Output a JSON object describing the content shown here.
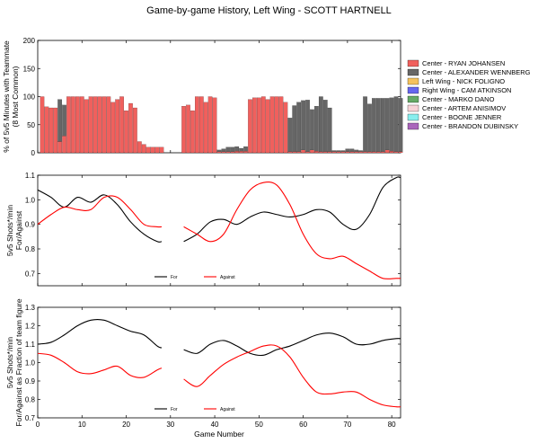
{
  "title": "Game-by-game History, Left Wing - SCOTT HARTNELL",
  "chart_data": [
    {
      "type": "bar",
      "stacked": true,
      "ylabel": "% of 5v5 Minutes with Teammate\n(8 Most Common)",
      "xlim": [
        0,
        82
      ],
      "ylim": [
        0,
        200
      ],
      "yticks": [
        0,
        50,
        100,
        150,
        200
      ],
      "xticks_shown": false,
      "legend_position": "right",
      "games": [
        1,
        2,
        3,
        4,
        5,
        6,
        7,
        8,
        9,
        10,
        11,
        12,
        13,
        14,
        15,
        16,
        17,
        18,
        19,
        20,
        21,
        22,
        23,
        24,
        25,
        26,
        27,
        28,
        33,
        34,
        35,
        36,
        37,
        38,
        39,
        40,
        41,
        42,
        43,
        44,
        45,
        46,
        47,
        48,
        49,
        50,
        51,
        52,
        53,
        54,
        55,
        56,
        57,
        58,
        59,
        60,
        61,
        62,
        63,
        64,
        65,
        66,
        67,
        68,
        69,
        70,
        71,
        72,
        73,
        74,
        75,
        76,
        77,
        78,
        79,
        80,
        81,
        82
      ],
      "series": [
        {
          "name": "Center - RYAN JOHANSEN",
          "color": "#f0605d",
          "values": [
            100,
            82,
            80,
            80,
            20,
            30,
            100,
            100,
            100,
            100,
            95,
            100,
            100,
            100,
            100,
            100,
            90,
            95,
            100,
            75,
            88,
            80,
            20,
            15,
            10,
            10,
            10,
            10,
            83,
            85,
            75,
            100,
            100,
            90,
            100,
            98,
            2,
            2,
            2,
            2,
            3,
            3,
            3,
            95,
            98,
            98,
            100,
            95,
            100,
            100,
            100,
            90,
            2,
            2,
            2,
            5,
            2,
            5,
            3,
            2,
            2,
            2,
            2,
            2,
            2,
            2,
            2,
            2,
            2,
            2,
            2,
            2,
            2,
            2,
            5,
            3,
            2,
            2
          ]
        },
        {
          "name": "Center - ALEXANDER WENNBERG",
          "color": "#666666",
          "values": [
            0,
            0,
            0,
            0,
            75,
            55,
            0,
            0,
            0,
            0,
            0,
            0,
            0,
            0,
            0,
            0,
            0,
            0,
            0,
            0,
            0,
            0,
            0,
            0,
            0,
            0,
            0,
            0,
            0,
            0,
            0,
            0,
            0,
            0,
            0,
            0,
            3,
            5,
            8,
            8,
            8,
            5,
            8,
            0,
            0,
            0,
            0,
            0,
            0,
            0,
            0,
            0,
            60,
            82,
            88,
            88,
            92,
            72,
            80,
            98,
            92,
            78,
            2,
            2,
            2,
            5,
            5,
            3,
            2,
            98,
            85,
            95,
            95,
            95,
            92,
            95,
            98,
            95
          ]
        },
        {
          "name": "Left Wing - NICK FOLIGNO",
          "color": "#f5c25c",
          "values": [
            0,
            0,
            0,
            0,
            0,
            0,
            0,
            0,
            0,
            0,
            0,
            0,
            0,
            0,
            0,
            0,
            0,
            0,
            0,
            0,
            0,
            0,
            0,
            0,
            0,
            0,
            0,
            0,
            0,
            0,
            0,
            0,
            0,
            0,
            0,
            0,
            0,
            0,
            0,
            0,
            0,
            0,
            0,
            0,
            0,
            0,
            0,
            0,
            0,
            0,
            0,
            0,
            0,
            0,
            0,
            0,
            0,
            0,
            0,
            0,
            0,
            0,
            0,
            0,
            0,
            0,
            0,
            0,
            0,
            0,
            0,
            0,
            0,
            0,
            0,
            0,
            0,
            0
          ]
        },
        {
          "name": "Right Wing - CAM ATKINSON",
          "color": "#6666ee",
          "values": [
            0,
            0,
            0,
            0,
            0,
            0,
            0,
            0,
            0,
            0,
            0,
            0,
            0,
            0,
            0,
            0,
            0,
            0,
            0,
            0,
            0,
            0,
            0,
            0,
            0,
            0,
            0,
            0,
            0,
            0,
            0,
            0,
            0,
            0,
            0,
            0,
            0,
            0,
            0,
            0,
            0,
            0,
            0,
            0,
            0,
            0,
            0,
            0,
            0,
            0,
            0,
            0,
            0,
            0,
            0,
            0,
            0,
            0,
            0,
            0,
            0,
            0,
            0,
            0,
            0,
            0,
            0,
            0,
            0,
            0,
            0,
            0,
            0,
            0,
            0,
            0,
            0,
            0
          ]
        },
        {
          "name": "Center - MARKO DANO",
          "color": "#66aa66",
          "values": [
            0,
            0,
            0,
            0,
            0,
            0,
            0,
            0,
            0,
            0,
            0,
            0,
            0,
            0,
            0,
            0,
            0,
            0,
            0,
            0,
            0,
            0,
            0,
            0,
            0,
            0,
            0,
            0,
            0,
            0,
            0,
            0,
            0,
            0,
            0,
            0,
            0,
            0,
            0,
            0,
            0,
            0,
            0,
            0,
            0,
            0,
            0,
            0,
            0,
            0,
            0,
            0,
            0,
            0,
            0,
            0,
            0,
            0,
            0,
            0,
            0,
            0,
            0,
            0,
            0,
            0,
            0,
            0,
            0,
            0,
            0,
            0,
            0,
            0,
            0,
            0,
            0,
            0
          ]
        },
        {
          "name": "Center - ARTEM ANISIMOV",
          "color": "#f8d4d8",
          "values": [
            0,
            0,
            0,
            0,
            0,
            0,
            0,
            0,
            0,
            0,
            0,
            0,
            0,
            0,
            0,
            0,
            0,
            0,
            0,
            0,
            0,
            0,
            0,
            0,
            0,
            0,
            0,
            0,
            0,
            0,
            0,
            0,
            0,
            0,
            0,
            0,
            0,
            0,
            0,
            0,
            0,
            0,
            0,
            0,
            0,
            0,
            0,
            0,
            0,
            0,
            0,
            0,
            0,
            0,
            0,
            0,
            0,
            0,
            0,
            0,
            0,
            0,
            0,
            0,
            0,
            0,
            0,
            0,
            0,
            0,
            0,
            0,
            0,
            0,
            0,
            0,
            0,
            0
          ]
        },
        {
          "name": "Center - BOONE JENNER",
          "color": "#88eeee",
          "values": [
            0,
            0,
            0,
            0,
            0,
            0,
            0,
            0,
            0,
            0,
            0,
            0,
            0,
            0,
            0,
            0,
            0,
            0,
            0,
            0,
            0,
            0,
            0,
            0,
            0,
            0,
            0,
            0,
            0,
            0,
            0,
            0,
            0,
            0,
            0,
            0,
            0,
            0,
            0,
            0,
            0,
            0,
            0,
            0,
            0,
            0,
            0,
            0,
            0,
            0,
            0,
            0,
            0,
            0,
            0,
            0,
            0,
            0,
            0,
            0,
            0,
            0,
            0,
            0,
            0,
            0,
            0,
            0,
            0,
            0,
            0,
            0,
            0,
            0,
            0,
            0,
            0,
            0
          ]
        },
        {
          "name": "Center - BRANDON DUBINSKY",
          "color": "#aa66bb",
          "values": [
            0,
            0,
            0,
            0,
            0,
            0,
            0,
            0,
            0,
            0,
            0,
            0,
            0,
            0,
            0,
            0,
            0,
            0,
            0,
            0,
            0,
            0,
            0,
            0,
            0,
            0,
            0,
            0,
            0,
            0,
            0,
            0,
            0,
            0,
            0,
            0,
            0,
            0,
            0,
            0,
            0,
            0,
            0,
            0,
            0,
            0,
            0,
            0,
            0,
            0,
            0,
            0,
            0,
            0,
            0,
            0,
            0,
            0,
            0,
            0,
            0,
            0,
            0,
            0,
            0,
            0,
            0,
            0,
            0,
            0,
            0,
            0,
            0,
            0,
            0,
            0,
            0,
            0
          ]
        }
      ]
    },
    {
      "type": "line",
      "ylabel": "5v5 Shots*/min\nFor/Against",
      "xlim": [
        0,
        82
      ],
      "ylim": [
        0.65,
        1.1
      ],
      "yticks": [
        0.7,
        0.8,
        0.9,
        1.0,
        1.1
      ],
      "ytick_labels": [
        "0.7",
        "0.8",
        "0.9",
        "1.0",
        "1.1"
      ],
      "legend_position": "lower center",
      "series": [
        {
          "name": "For",
          "color": "#000000",
          "segments": [
            {
              "x": [
                0,
                3,
                6,
                9,
                12,
                15,
                18,
                21,
                24,
                27,
                28
              ],
              "y": [
                1.04,
                1.01,
                0.97,
                1.01,
                0.99,
                1.02,
                0.98,
                0.91,
                0.86,
                0.83,
                0.83
              ]
            },
            {
              "x": [
                33,
                36,
                39,
                42,
                45,
                48,
                51,
                54,
                57,
                60,
                63,
                66,
                69,
                72,
                75,
                78,
                81,
                82
              ],
              "y": [
                0.83,
                0.86,
                0.91,
                0.92,
                0.9,
                0.93,
                0.95,
                0.94,
                0.93,
                0.94,
                0.96,
                0.95,
                0.9,
                0.88,
                0.94,
                1.05,
                1.09,
                1.09
              ]
            }
          ]
        },
        {
          "name": "Against",
          "color": "#ff0000",
          "segments": [
            {
              "x": [
                0,
                3,
                6,
                9,
                12,
                15,
                18,
                21,
                24,
                27,
                28
              ],
              "y": [
                0.9,
                0.94,
                0.97,
                0.96,
                0.96,
                1.01,
                1.01,
                0.96,
                0.9,
                0.89,
                0.89
              ]
            },
            {
              "x": [
                33,
                36,
                39,
                42,
                45,
                48,
                51,
                54,
                57,
                60,
                63,
                66,
                69,
                72,
                75,
                78,
                81,
                82
              ],
              "y": [
                0.89,
                0.86,
                0.83,
                0.86,
                0.96,
                1.04,
                1.07,
                1.06,
                0.98,
                0.86,
                0.78,
                0.76,
                0.77,
                0.74,
                0.71,
                0.68,
                0.68,
                0.68
              ]
            }
          ]
        }
      ]
    },
    {
      "type": "line",
      "ylabel": "5v5 Shots*/min\nFor/Against as Fraction of team figure",
      "xlabel": "Game Number",
      "xlim": [
        0,
        82
      ],
      "ylim": [
        0.7,
        1.3
      ],
      "xticks": [
        0,
        10,
        20,
        30,
        40,
        50,
        60,
        70,
        80
      ],
      "yticks": [
        0.7,
        0.8,
        0.9,
        1.0,
        1.1,
        1.2,
        1.3
      ],
      "legend_position": "lower center",
      "series": [
        {
          "name": "For",
          "color": "#000000",
          "segments": [
            {
              "x": [
                0,
                3,
                6,
                9,
                12,
                15,
                18,
                21,
                24,
                27,
                28
              ],
              "y": [
                1.1,
                1.11,
                1.15,
                1.2,
                1.23,
                1.23,
                1.2,
                1.17,
                1.15,
                1.09,
                1.08
              ]
            },
            {
              "x": [
                33,
                36,
                39,
                42,
                45,
                48,
                51,
                54,
                57,
                60,
                63,
                66,
                69,
                72,
                75,
                78,
                81,
                82
              ],
              "y": [
                1.07,
                1.05,
                1.1,
                1.12,
                1.09,
                1.05,
                1.04,
                1.07,
                1.09,
                1.12,
                1.15,
                1.16,
                1.14,
                1.1,
                1.1,
                1.12,
                1.13,
                1.13
              ]
            }
          ]
        },
        {
          "name": "Against",
          "color": "#ff0000",
          "segments": [
            {
              "x": [
                0,
                3,
                6,
                9,
                12,
                15,
                18,
                21,
                24,
                27,
                28
              ],
              "y": [
                1.05,
                1.04,
                1.0,
                0.95,
                0.94,
                0.96,
                0.98,
                0.93,
                0.92,
                0.96,
                0.97
              ]
            },
            {
              "x": [
                33,
                36,
                39,
                42,
                45,
                48,
                51,
                54,
                57,
                60,
                63,
                66,
                69,
                72,
                75,
                78,
                81,
                82
              ],
              "y": [
                0.91,
                0.87,
                0.93,
                0.99,
                1.03,
                1.06,
                1.09,
                1.09,
                1.03,
                0.92,
                0.84,
                0.83,
                0.84,
                0.84,
                0.8,
                0.77,
                0.76,
                0.76
              ]
            }
          ]
        }
      ]
    }
  ]
}
